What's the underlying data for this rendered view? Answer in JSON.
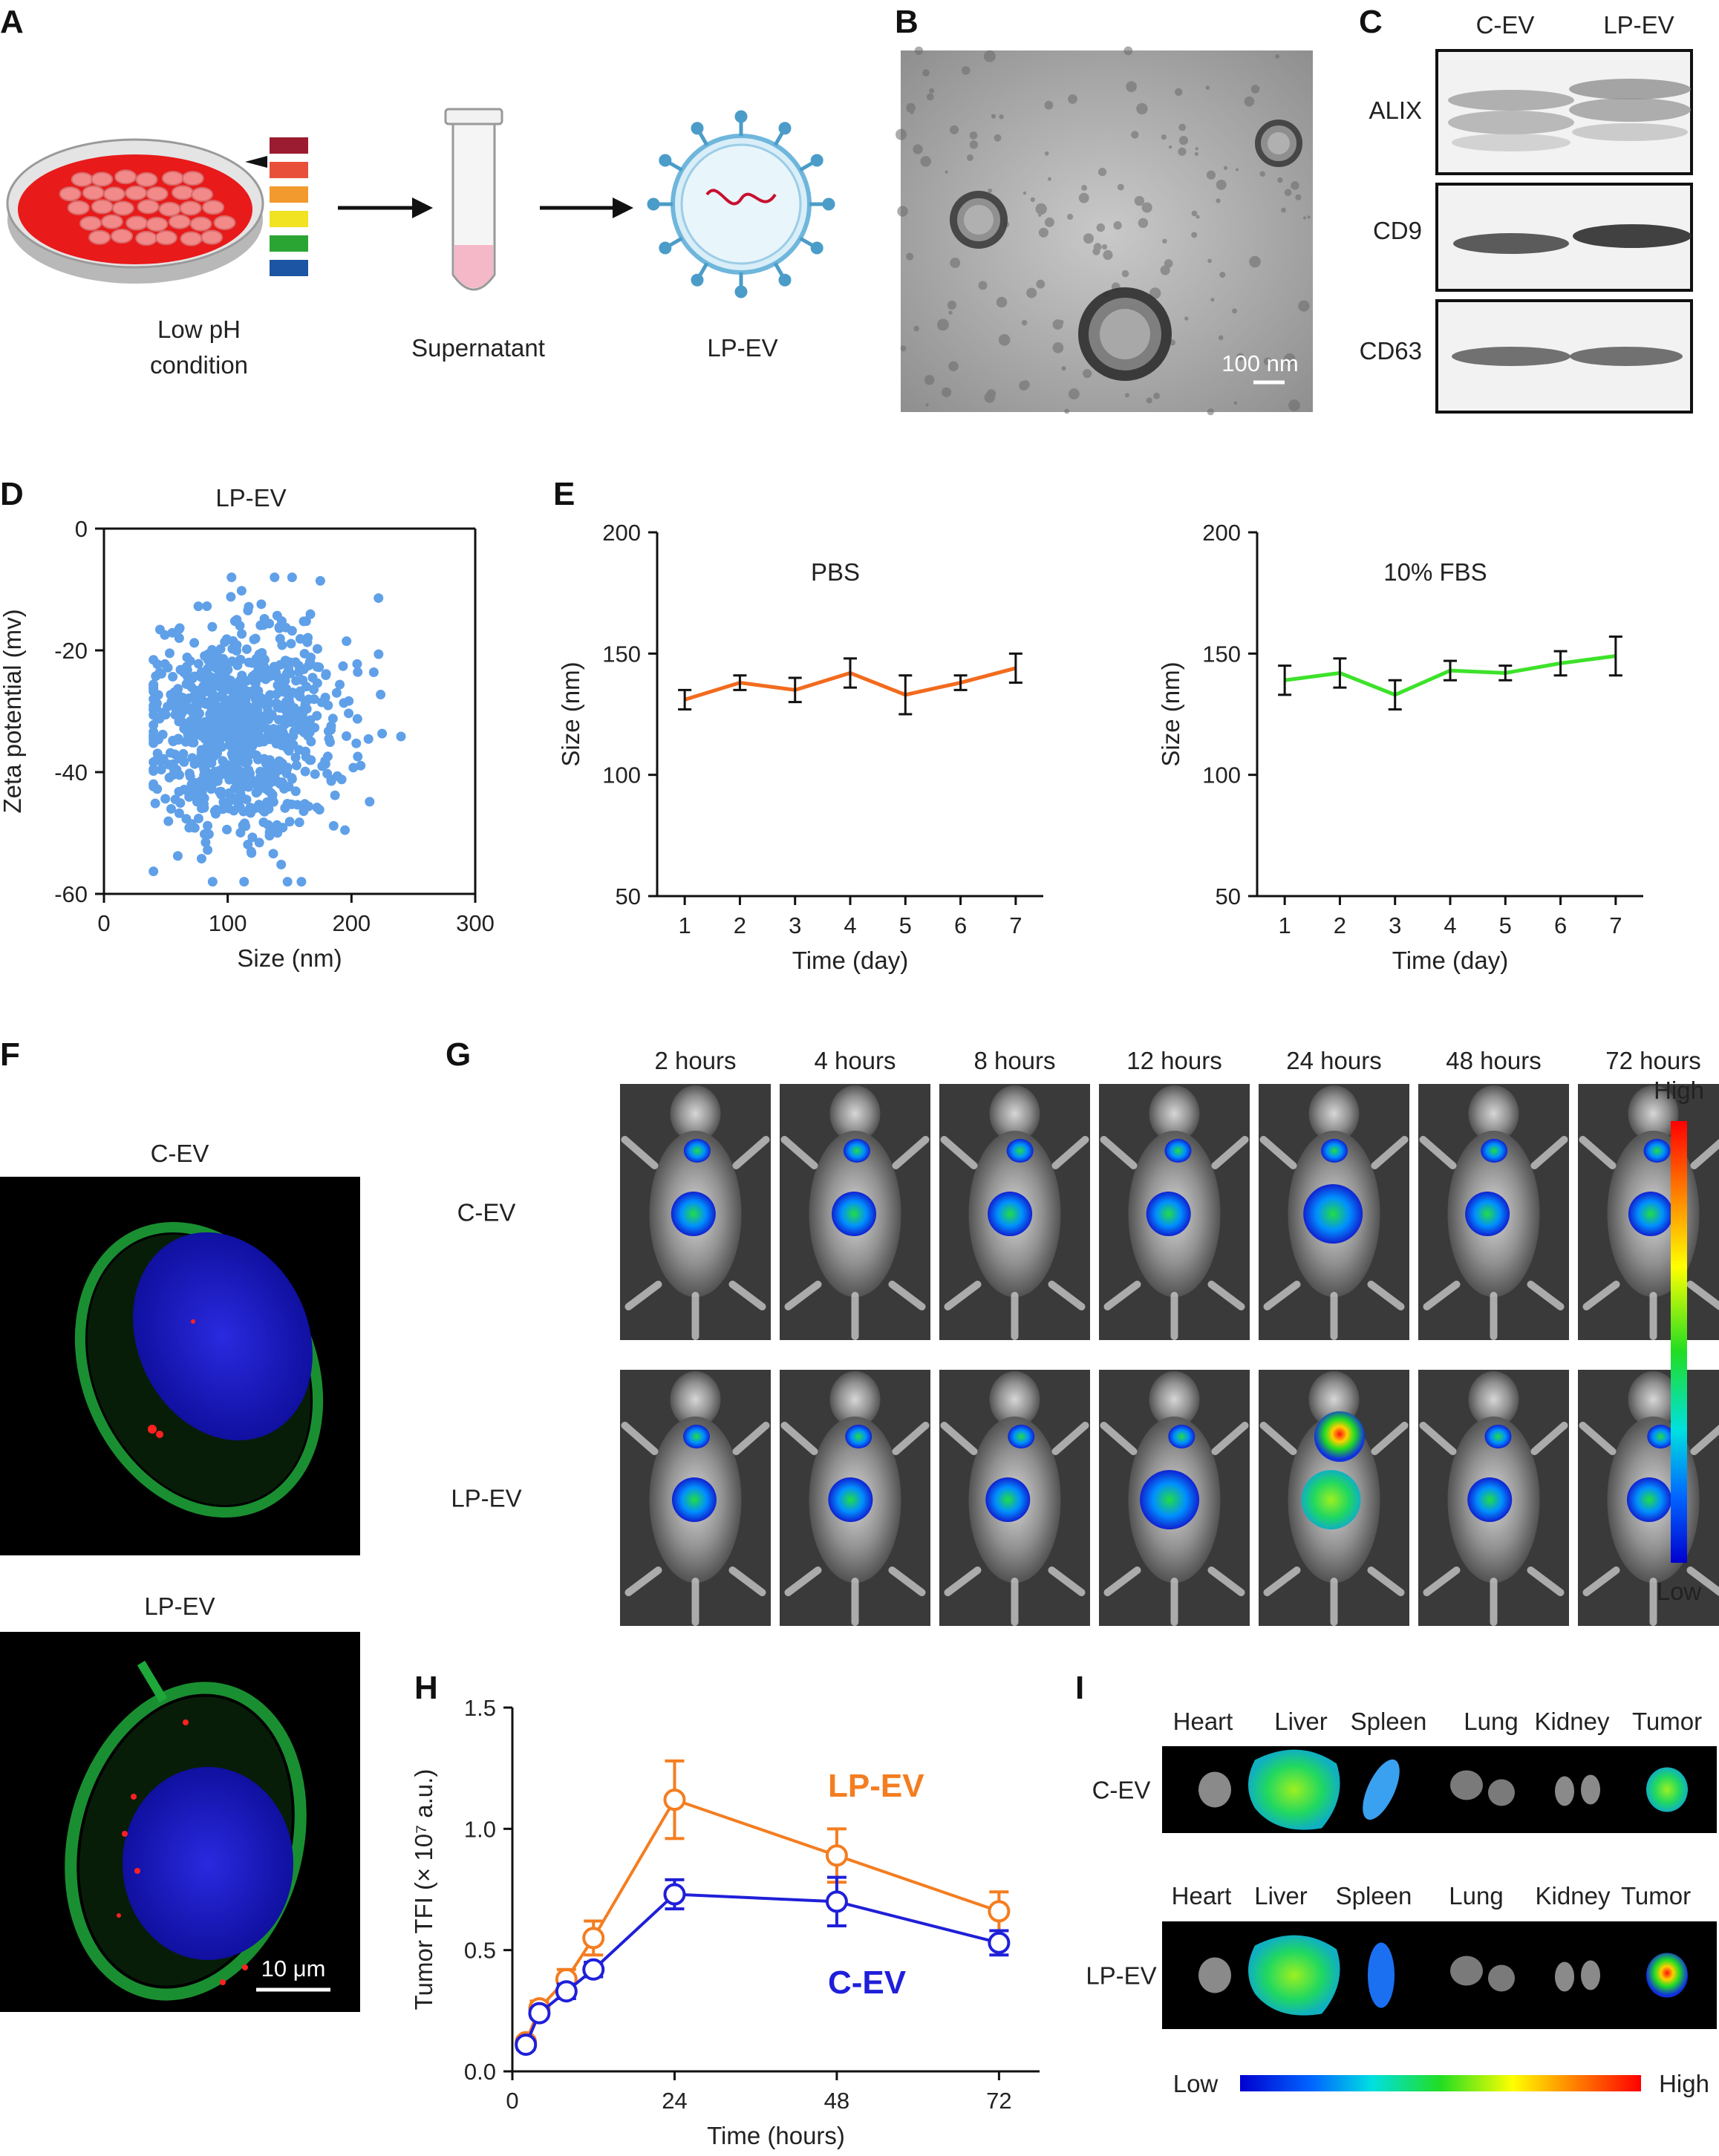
{
  "panels": [
    "A",
    "B",
    "C",
    "D",
    "E",
    "F",
    "G",
    "H",
    "I"
  ],
  "panel_a": {
    "step1": [
      "Low pH",
      "condition"
    ],
    "step2": "Supernatant",
    "step3": "LP-EV"
  },
  "panel_b": {
    "scale_bar": "100 nm"
  },
  "panel_c": {
    "columns": [
      "C-EV",
      "LP-EV"
    ],
    "rows": [
      "ALIX",
      "CD9",
      "CD63"
    ]
  },
  "panel_f": {
    "top_label": "C-EV",
    "bottom_label": "LP-EV",
    "scale_bar": "10 μm"
  },
  "panel_g": {
    "times": [
      "2 hours",
      "4 hours",
      "8 hours",
      "12 hours",
      "24 hours",
      "48 hours",
      "72 hours"
    ],
    "rows": [
      "C-EV",
      "LP-EV"
    ],
    "colorbar": {
      "high": "High",
      "low": "Low"
    }
  },
  "panel_i": {
    "rows": [
      "C-EV",
      "LP-EV"
    ],
    "organs": [
      "Heart",
      "Liver",
      "Spleen",
      "Lung",
      "Kidney",
      "Tumor"
    ],
    "colorbar": {
      "low": "Low",
      "high": "High"
    }
  },
  "colors": {
    "scatter": "#5fa0e8",
    "pbs": "#f26b1d",
    "fbs": "#3de22a",
    "lpev": "#f47d20",
    "cev": "#1f1fd9"
  },
  "chart_data": [
    {
      "id": "D",
      "type": "scatter",
      "title": "LP-EV",
      "xlabel": "Size (nm)",
      "ylabel": "Zeta potential (mv)",
      "xlim": [
        0,
        300
      ],
      "ylim": [
        -60,
        0
      ],
      "xticks": [
        "0",
        "100",
        "200",
        "300"
      ],
      "yticks": [
        "0",
        "-20",
        "-40",
        "-60"
      ],
      "cluster": {
        "x_mean": 112,
        "x_sd": 38,
        "y_mean": -33,
        "y_sd": 8.5,
        "x_range": [
          40,
          240
        ],
        "y_range": [
          -58,
          -8
        ]
      },
      "n_points": 900
    },
    {
      "id": "E1",
      "type": "line",
      "title": "PBS",
      "xlabel": "Time (day)",
      "ylabel": "Size (nm)",
      "xlim": [
        0.5,
        7.5
      ],
      "ylim": [
        50,
        200
      ],
      "xticks": [
        "1",
        "2",
        "3",
        "4",
        "5",
        "6",
        "7"
      ],
      "yticks": [
        "50",
        "100",
        "150",
        "200"
      ],
      "x": [
        1,
        2,
        3,
        4,
        5,
        6,
        7
      ],
      "y": [
        131,
        138,
        135,
        142,
        133,
        138,
        144
      ],
      "err": [
        4,
        3,
        5,
        6,
        8,
        3,
        6
      ]
    },
    {
      "id": "E2",
      "type": "line",
      "title": "10% FBS",
      "xlabel": "Time (day)",
      "ylabel": "Size (nm)",
      "xlim": [
        0.5,
        7.5
      ],
      "ylim": [
        50,
        200
      ],
      "xticks": [
        "1",
        "2",
        "3",
        "4",
        "5",
        "6",
        "7"
      ],
      "yticks": [
        "50",
        "100",
        "150",
        "200"
      ],
      "x": [
        1,
        2,
        3,
        4,
        5,
        6,
        7
      ],
      "y": [
        139,
        142,
        133,
        143,
        142,
        146,
        149
      ],
      "err": [
        6,
        6,
        6,
        4,
        3,
        5,
        8
      ]
    },
    {
      "id": "H",
      "type": "line",
      "xlabel": "Time (hours)",
      "ylabel": "Tumor TFI (× 10⁷ a.u.)",
      "xlim": [
        0,
        78
      ],
      "ylim": [
        0,
        1.5
      ],
      "xticks": [
        "0",
        "24",
        "48",
        "72"
      ],
      "yticks": [
        "0.0",
        "0.5",
        "1.0",
        "1.5"
      ],
      "x": [
        2,
        4,
        8,
        12,
        24,
        48,
        72
      ],
      "series": [
        {
          "name": "LP-EV",
          "values": [
            0.12,
            0.26,
            0.38,
            0.55,
            1.12,
            0.89,
            0.66
          ],
          "err": [
            0.02,
            0.03,
            0.04,
            0.07,
            0.16,
            0.11,
            0.08
          ]
        },
        {
          "name": "C-EV",
          "values": [
            0.11,
            0.24,
            0.33,
            0.42,
            0.73,
            0.7,
            0.53
          ],
          "err": [
            0.02,
            0.02,
            0.03,
            0.03,
            0.06,
            0.1,
            0.05
          ]
        }
      ]
    }
  ]
}
